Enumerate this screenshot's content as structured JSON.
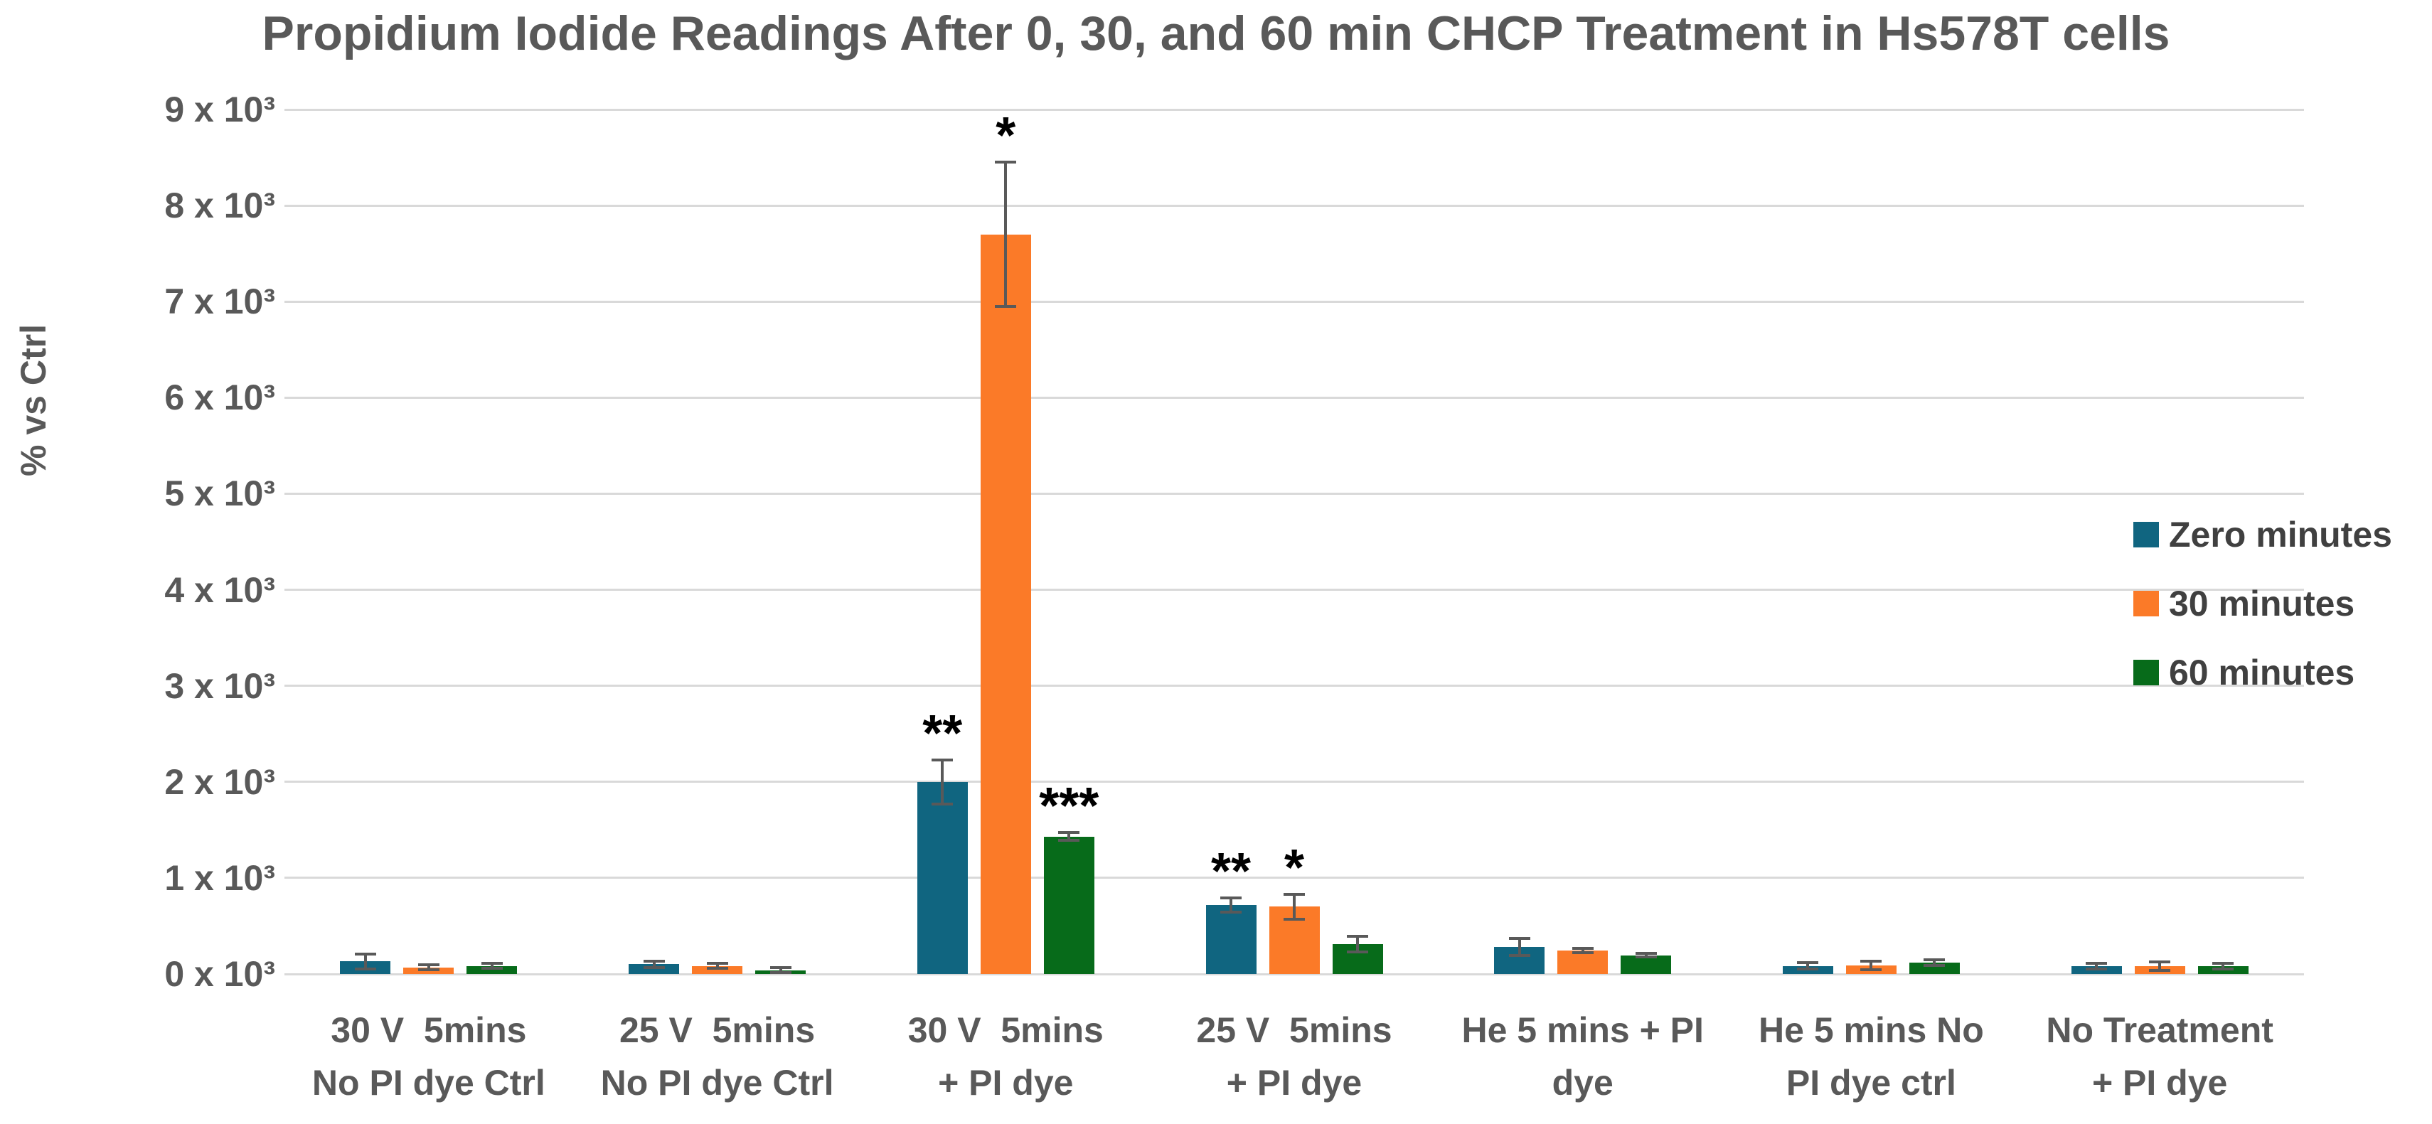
{
  "chart_data": {
    "type": "bar",
    "title": "Propidium Iodide Readings After 0, 30, and 60 min CHCP Treatment in Hs578T cells",
    "ylabel": "% vs Ctrl",
    "xlabel": "",
    "ylim": [
      0,
      9000
    ],
    "ytick_step": 1000,
    "grid": true,
    "legend_position": "right",
    "ytick_labels": [
      "0 x 10³",
      "1 x 10³",
      "2 x 10³",
      "3 x 10³",
      "4 x 10³",
      "5 x 10³",
      "6 x 10³",
      "7 x 10³",
      "8 x 10³",
      "9 x 10³"
    ],
    "categories": [
      "30 V  5mins\nNo PI dye Ctrl",
      "25 V  5mins\nNo PI dye Ctrl",
      "30 V  5mins\n+ PI dye",
      "25 V  5mins\n+ PI dye",
      "He 5 mins + PI\ndye",
      "He 5 mins No\nPI dye ctrl",
      "No Treatment\n+ PI dye"
    ],
    "series": [
      {
        "name": "Zero minutes",
        "color": "#106580",
        "values": [
          130,
          100,
          2000,
          720,
          280,
          85,
          80
        ],
        "errors": [
          75,
          30,
          230,
          75,
          90,
          30,
          30
        ],
        "significance": [
          "",
          "",
          "**",
          "**",
          "",
          "",
          ""
        ]
      },
      {
        "name": "30 minutes",
        "color": "#fb7a28",
        "values": [
          70,
          85,
          7700,
          700,
          245,
          90,
          80
        ],
        "errors": [
          25,
          25,
          750,
          130,
          25,
          45,
          45
        ],
        "significance": [
          "",
          "",
          "*",
          "*",
          "",
          "",
          ""
        ]
      },
      {
        "name": "60 minutes",
        "color": "#076b1a",
        "values": [
          85,
          40,
          1430,
          310,
          195,
          120,
          80
        ],
        "errors": [
          25,
          25,
          40,
          80,
          20,
          30,
          30
        ],
        "significance": [
          "",
          "",
          "***",
          "",
          "",
          "",
          ""
        ]
      }
    ],
    "colors": {
      "grid": "#d9d9d9",
      "axis_text": "#595959",
      "legend_text": "#404040",
      "error_bar": "#595959",
      "significance": "#000000",
      "background": "#ffffff"
    }
  }
}
